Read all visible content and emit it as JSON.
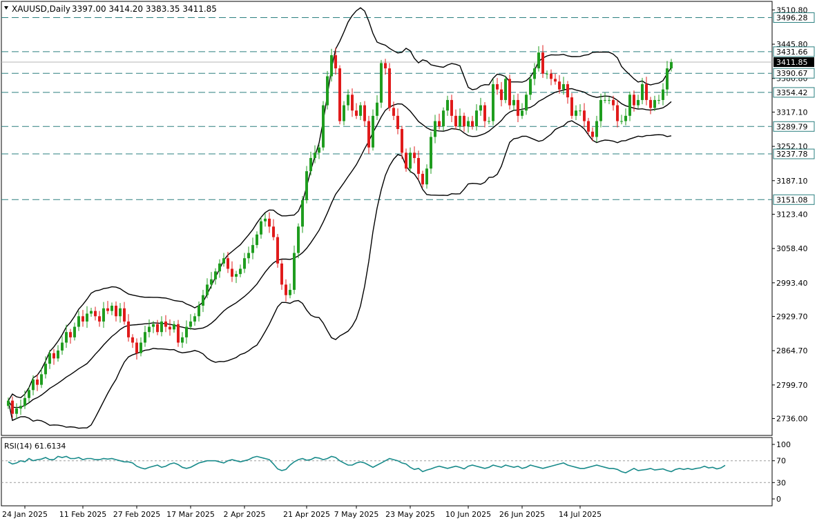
{
  "header": {
    "symbol": "XAUUSD,Daily",
    "ohlc": "3397.00 3414.20 3383.35 3411.85",
    "dropdown_icon": "triangle-down-icon"
  },
  "rsi": {
    "label": "RSI(14) 61.6134",
    "levels": [
      30,
      70
    ],
    "scale_labels": [
      "100",
      "70",
      "30",
      "0"
    ],
    "line_color": "#178a8a",
    "values": [
      68,
      64,
      66,
      70,
      68,
      74,
      70,
      72,
      73,
      76,
      72,
      72,
      78,
      76,
      78,
      74,
      74,
      76,
      72,
      74,
      74,
      72,
      72,
      74,
      73,
      74,
      72,
      70,
      68,
      68,
      66,
      60,
      57,
      55,
      58,
      60,
      62,
      58,
      60,
      64,
      66,
      63,
      58,
      56,
      58,
      62,
      66,
      68,
      70,
      70,
      70,
      68,
      66,
      70,
      72,
      70,
      68,
      70,
      72,
      76,
      78,
      76,
      74,
      72,
      64,
      55,
      52,
      54,
      62,
      68,
      72,
      74,
      71,
      72,
      76,
      75,
      72,
      74,
      78,
      76,
      70,
      66,
      62,
      62,
      66,
      68,
      66,
      62,
      58,
      62,
      66,
      70,
      74,
      72,
      70,
      66,
      64,
      58,
      54,
      56,
      50,
      53,
      55,
      58,
      60,
      58,
      56,
      58,
      60,
      58,
      55,
      60,
      62,
      60,
      58,
      56,
      58,
      62,
      60,
      58,
      62,
      60,
      58,
      60,
      56,
      58,
      62,
      60,
      58,
      56,
      58,
      60,
      62,
      64,
      66,
      62,
      60,
      58,
      56,
      56,
      58,
      60,
      62,
      60,
      58,
      56,
      56,
      54,
      50,
      48,
      52,
      56,
      52,
      53,
      54,
      56,
      53,
      54,
      55,
      52,
      50,
      54,
      56,
      54,
      56,
      54,
      56,
      57,
      60,
      57,
      58,
      55,
      57,
      61.6134
    ]
  },
  "price_axis_labels": [
    "3510.80",
    "3445.80",
    "3380.80",
    "3317.10",
    "3252.10",
    "3187.10",
    "3123.40",
    "3058.40",
    "2993.40",
    "2929.70",
    "2864.70",
    "2799.70",
    "2736.00"
  ],
  "date_labels": [
    "24 Jan 2025",
    "11 Feb 2025",
    "27 Feb 2025",
    "17 Mar 2025",
    "2 Apr 2025",
    "21 Apr 2025",
    "7 May 2025",
    "23 May 2025",
    "10 Jun 2025",
    "26 Jun 2025",
    "14 Jul 2025"
  ],
  "horizontal_levels": [
    {
      "label": "3496.28",
      "value": 3496.28
    },
    {
      "label": "3431.66",
      "value": 3431.66
    },
    {
      "label": "3390.67",
      "value": 3390.67
    },
    {
      "label": "3354.42",
      "value": 3354.42
    },
    {
      "label": "3289.79",
      "value": 3289.79
    },
    {
      "label": "3237.78",
      "value": 3237.78
    },
    {
      "label": "3151.08",
      "value": 3151.08
    }
  ],
  "current_price": {
    "label": "3411.85",
    "value": 3411.85
  },
  "colors": {
    "bull": "#1f9d1f",
    "bear": "#e01b1b",
    "bands": "#000000",
    "level_line": "#2a7f7f",
    "current_bg": "#000000",
    "grid_border": "#000000"
  },
  "chart_data": {
    "type": "candlestick",
    "title": "XAUUSD,Daily",
    "ylim": [
      2704,
      3527
    ],
    "x_date_labels": [
      "24 Jan 2025",
      "11 Feb 2025",
      "27 Feb 2025",
      "17 Mar 2025",
      "2 Apr 2025",
      "21 Apr 2025",
      "7 May 2025",
      "23 May 2025",
      "10 Jun 2025",
      "26 Jun 2025",
      "14 Jul 2025"
    ],
    "overlays": [
      "Bollinger Bands (upper, middle, lower)"
    ],
    "series": [
      {
        "name": "XAUUSD,Daily",
        "close": [
          2770,
          2745,
          2755,
          2760,
          2775,
          2790,
          2810,
          2800,
          2820,
          2840,
          2860,
          2850,
          2865,
          2880,
          2900,
          2890,
          2910,
          2930,
          2920,
          2935,
          2940,
          2930,
          2920,
          2945,
          2940,
          2950,
          2930,
          2945,
          2920,
          2890,
          2880,
          2860,
          2880,
          2900,
          2910,
          2915,
          2900,
          2920,
          2910,
          2905,
          2915,
          2880,
          2890,
          2910,
          2920,
          2930,
          2950,
          2970,
          2990,
          3000,
          3015,
          3030,
          3040,
          3020,
          3005,
          3010,
          3020,
          3040,
          3050,
          3065,
          3085,
          3110,
          3115,
          3100,
          3080,
          3030,
          2990,
          2970,
          2980,
          3050,
          3100,
          3150,
          3205,
          3230,
          3240,
          3250,
          3330,
          3385,
          3425,
          3400,
          3300,
          3330,
          3350,
          3320,
          3310,
          3330,
          3300,
          3250,
          3310,
          3335,
          3410,
          3400,
          3325,
          3310,
          3285,
          3240,
          3210,
          3240,
          3230,
          3200,
          3180,
          3210,
          3270,
          3300,
          3290,
          3320,
          3340,
          3310,
          3290,
          3310,
          3290,
          3300,
          3290,
          3320,
          3330,
          3300,
          3300,
          3370,
          3360,
          3340,
          3380,
          3330,
          3340,
          3310,
          3320,
          3350,
          3380,
          3400,
          3430,
          3390,
          3390,
          3380,
          3375,
          3360,
          3370,
          3345,
          3310,
          3320,
          3320,
          3300,
          3280,
          3270,
          3300,
          3340,
          3340,
          3340,
          3330,
          3300,
          3300,
          3310,
          3350,
          3330,
          3340,
          3370,
          3340,
          3325,
          3340,
          3340,
          3360,
          3400,
          3411.85
        ]
      }
    ]
  }
}
